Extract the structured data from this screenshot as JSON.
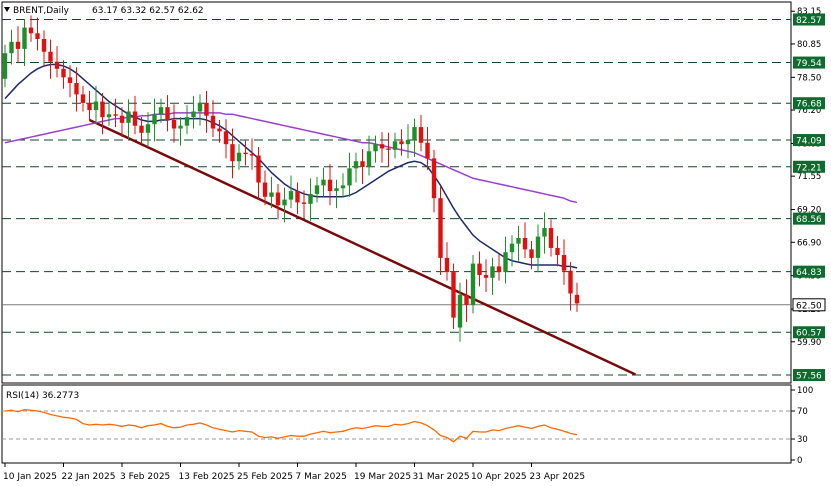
{
  "header": {
    "symbol": "BRENT,Daily",
    "ohlc": "63.17 63.32 62.57 62.62"
  },
  "colors": {
    "bull": "#1f8f2a",
    "bear": "#e01010",
    "ma_fast": "#1a2a6c",
    "ma_slow": "#9a3fd0",
    "trendline": "#7a0a0a",
    "level_line": "#0a4a2a",
    "level_box": "#0e6b2e",
    "price_box": "#ffffff",
    "rsi_line": "#ff6a00"
  },
  "chart_data": [
    {
      "type": "candlestick",
      "title": "BRENT,Daily",
      "ylim": [
        57.0,
        83.8
      ],
      "y_ticks": [
        83.15,
        80.85,
        78.5,
        76.2,
        73.85,
        71.55,
        69.2,
        66.9,
        64.55,
        62.2,
        59.9
      ],
      "x_ticks": [
        "10 Jan 2025",
        "22 Jan 2025",
        "3 Feb 2025",
        "13 Feb 2025",
        "25 Feb 2025",
        "7 Mar 2025",
        "19 Mar 2025",
        "31 Mar 2025",
        "10 Apr 2025",
        "23 Apr 2025"
      ],
      "x_tick_index": [
        0,
        9,
        18,
        27,
        36,
        45,
        54,
        63,
        72,
        81
      ],
      "levels": [
        {
          "value": 82.57,
          "label": "82.57",
          "style": "box"
        },
        {
          "value": 79.54,
          "label": "79.54",
          "style": "box"
        },
        {
          "value": 76.68,
          "label": "76.68",
          "style": "box"
        },
        {
          "value": 74.09,
          "label": "74.09",
          "style": "box"
        },
        {
          "value": 72.21,
          "label": "72.21",
          "style": "box"
        },
        {
          "value": 68.56,
          "label": "68.56",
          "style": "box"
        },
        {
          "value": 64.83,
          "label": "64.83",
          "style": "box"
        },
        {
          "value": 62.5,
          "label": "62.50",
          "style": "price"
        },
        {
          "value": 60.57,
          "label": "60.57",
          "style": "box"
        },
        {
          "value": 57.56,
          "label": "57.56",
          "style": "box"
        }
      ],
      "closes": [
        80.2,
        81.0,
        80.5,
        82.0,
        81.6,
        81.2,
        80.3,
        79.6,
        79.1,
        78.5,
        78.1,
        77.3,
        76.7,
        76.2,
        76.8,
        75.7,
        75.9,
        75.8,
        75.3,
        76.1,
        75.1,
        74.6,
        75.2,
        75.9,
        76.4,
        75.5,
        74.9,
        75.1,
        75.7,
        76.1,
        76.7,
        75.8,
        74.9,
        74.7,
        73.8,
        72.6,
        73.2,
        73.1,
        73.0,
        71.1,
        70.1,
        70.4,
        69.5,
        69.9,
        70.5,
        69.7,
        69.6,
        70.3,
        70.9,
        71.3,
        70.5,
        70.7,
        70.9,
        72.1,
        72.6,
        72.2,
        73.3,
        73.8,
        73.5,
        73.4,
        74.0,
        73.8,
        74.1,
        75.0,
        73.9,
        72.8,
        70.0,
        65.8,
        64.8,
        61.6,
        63.2,
        62.5,
        65.4,
        64.6,
        64.4,
        65.2,
        64.8,
        66.2,
        66.8,
        67.2,
        66.4,
        65.8,
        67.3,
        67.9,
        66.5,
        66.0,
        64.9,
        63.3,
        62.6
      ],
      "opens": [
        78.4,
        80.2,
        81.0,
        80.5,
        82.0,
        81.6,
        81.2,
        80.3,
        79.6,
        79.1,
        78.5,
        78.1,
        77.3,
        76.7,
        76.2,
        76.8,
        75.7,
        75.9,
        75.8,
        75.3,
        76.1,
        75.1,
        74.6,
        75.2,
        75.9,
        76.4,
        75.5,
        74.9,
        75.1,
        75.7,
        76.1,
        76.7,
        75.8,
        74.9,
        74.7,
        73.8,
        72.6,
        73.2,
        73.1,
        73.0,
        71.1,
        70.1,
        70.4,
        69.5,
        69.9,
        70.5,
        69.7,
        69.6,
        70.3,
        70.9,
        71.3,
        70.5,
        70.7,
        70.9,
        72.1,
        72.6,
        72.2,
        73.3,
        73.8,
        73.5,
        73.4,
        74.0,
        73.8,
        74.1,
        75.0,
        73.9,
        72.8,
        70.0,
        65.8,
        64.8,
        60.9,
        63.2,
        62.5,
        65.4,
        64.6,
        64.4,
        65.2,
        64.8,
        66.2,
        66.8,
        67.2,
        66.4,
        65.8,
        67.3,
        67.9,
        66.5,
        66.0,
        64.9,
        63.2
      ],
      "ma_fast": [
        77.0,
        77.5,
        78.0,
        78.4,
        78.8,
        79.1,
        79.3,
        79.4,
        79.4,
        79.3,
        79.1,
        78.8,
        78.4,
        78.0,
        77.6,
        77.2,
        76.8,
        76.5,
        76.2,
        75.9,
        75.7,
        75.5,
        75.4,
        75.4,
        75.5,
        75.5,
        75.6,
        75.6,
        75.6,
        75.6,
        75.6,
        75.5,
        75.3,
        75.1,
        74.8,
        74.4,
        74.0,
        73.6,
        73.2,
        72.8,
        72.3,
        71.8,
        71.4,
        71.0,
        70.7,
        70.5,
        70.3,
        70.2,
        70.1,
        70.1,
        70.1,
        70.1,
        70.1,
        70.2,
        70.4,
        70.7,
        71.0,
        71.3,
        71.6,
        71.9,
        72.1,
        72.3,
        72.5,
        72.6,
        72.5,
        72.2,
        71.6,
        70.9,
        70.1,
        69.3,
        68.6,
        68.0,
        67.4,
        67.0,
        66.7,
        66.4,
        66.1,
        65.8,
        65.6,
        65.5,
        65.4,
        65.3,
        65.3,
        65.3,
        65.3,
        65.3,
        65.2,
        65.2,
        65.1
      ],
      "ma_slow": [
        73.9,
        74.0,
        74.1,
        74.2,
        74.3,
        74.4,
        74.5,
        74.6,
        74.7,
        74.8,
        74.9,
        75.0,
        75.1,
        75.2,
        75.3,
        75.4,
        75.5,
        75.6,
        75.6,
        75.7,
        75.7,
        75.8,
        75.8,
        75.9,
        75.9,
        75.9,
        76.0,
        76.0,
        76.0,
        76.0,
        76.0,
        76.0,
        76.0,
        76.0,
        75.9,
        75.9,
        75.8,
        75.7,
        75.6,
        75.5,
        75.4,
        75.3,
        75.2,
        75.1,
        75.0,
        74.9,
        74.8,
        74.7,
        74.6,
        74.5,
        74.4,
        74.3,
        74.2,
        74.1,
        74.0,
        73.9,
        73.9,
        73.8,
        73.7,
        73.6,
        73.5,
        73.4,
        73.3,
        73.2,
        73.0,
        72.8,
        72.6,
        72.4,
        72.2,
        72.0,
        71.8,
        71.6,
        71.4,
        71.3,
        71.2,
        71.1,
        71.0,
        70.9,
        70.8,
        70.7,
        70.6,
        70.5,
        70.4,
        70.3,
        70.2,
        70.1,
        70.0,
        69.8,
        69.7
      ],
      "trendline": {
        "from_index": 13,
        "from_value": 75.5,
        "to_index": 97,
        "to_value": 57.6
      }
    },
    {
      "type": "line",
      "title": "RSI(14) 36.2773",
      "ylim": [
        0,
        100
      ],
      "y_ticks": [
        100,
        70,
        30,
        0
      ],
      "levels": [
        70,
        30
      ],
      "values": [
        70,
        71,
        69,
        72,
        71,
        70,
        68,
        65,
        63,
        61,
        60,
        58,
        52,
        50,
        51,
        50,
        51,
        50,
        48,
        50,
        49,
        46,
        49,
        50,
        52,
        48,
        46,
        47,
        50,
        51,
        53,
        50,
        46,
        44,
        42,
        40,
        42,
        41,
        40,
        34,
        32,
        33,
        31,
        33,
        35,
        34,
        34,
        37,
        39,
        41,
        39,
        40,
        41,
        44,
        46,
        45,
        47,
        49,
        48,
        48,
        51,
        50,
        52,
        55,
        53,
        49,
        43,
        35,
        32,
        26,
        34,
        31,
        41,
        40,
        40,
        43,
        42,
        45,
        47,
        49,
        47,
        45,
        48,
        50,
        46,
        44,
        41,
        38,
        36
      ]
    }
  ]
}
